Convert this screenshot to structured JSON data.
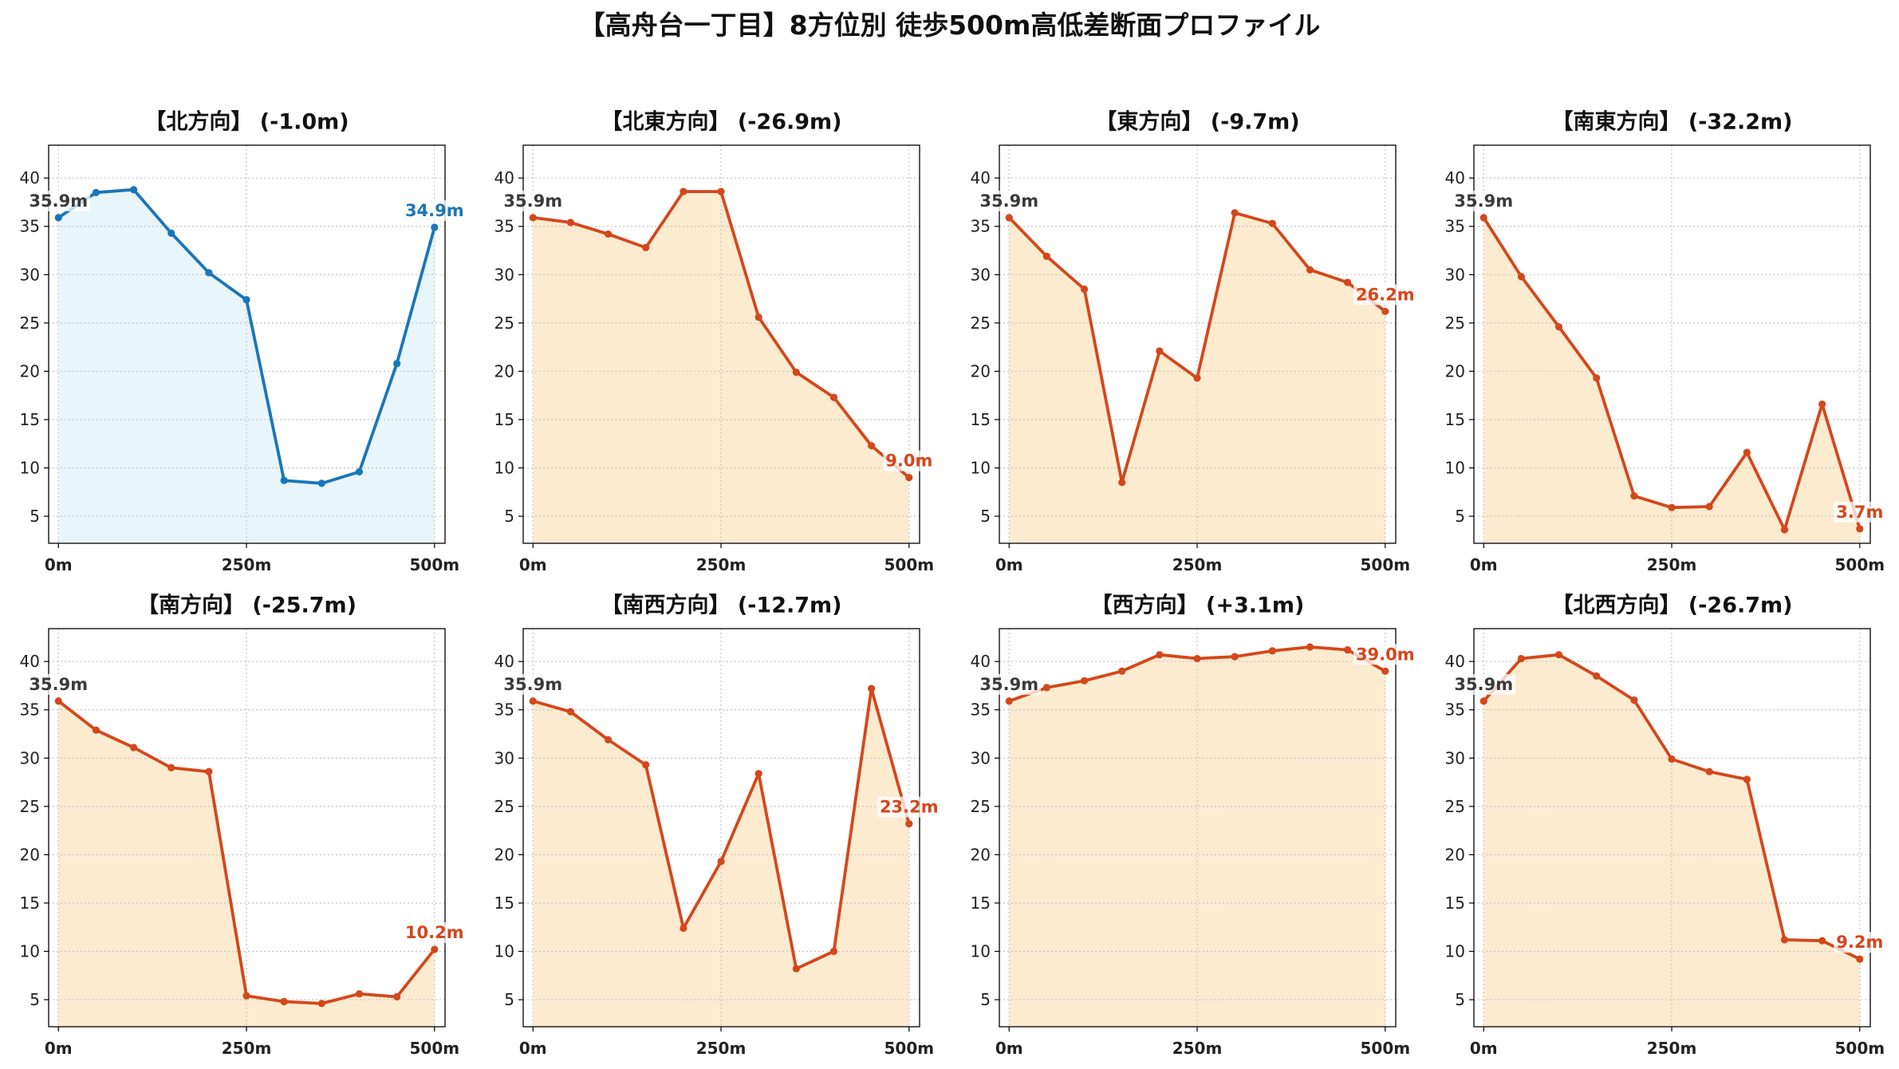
{
  "title": "【高舟台一丁目】8方位別 徒歩500m高低差断面プロファイル",
  "chart_data": [
    {
      "type": "area",
      "title": "【北方向】 (-1.0m)",
      "x": [
        0,
        50,
        100,
        150,
        200,
        250,
        300,
        350,
        400,
        450,
        500
      ],
      "y": [
        35.9,
        38.5,
        38.8,
        34.3,
        30.2,
        27.4,
        8.7,
        8.4,
        9.6,
        20.8,
        34.9
      ],
      "xticks": [
        0,
        250,
        500
      ],
      "xtick_labels": [
        "0m",
        "250m",
        "500m"
      ],
      "yticks": [
        5,
        10,
        15,
        20,
        25,
        30,
        35,
        40
      ],
      "xlim": [
        -13,
        514
      ],
      "ylim": [
        2.2,
        43.4
      ],
      "grid": true,
      "line_color": "#1976b8",
      "fill_color": "#e8f5fb",
      "start_label": "35.9m",
      "start_label_color": "#3a3a3a",
      "end_label": "34.9m"
    },
    {
      "type": "area",
      "title": "【北東方向】 (-26.9m)",
      "x": [
        0,
        50,
        100,
        150,
        200,
        250,
        300,
        350,
        400,
        450,
        500
      ],
      "y": [
        35.9,
        35.4,
        34.2,
        32.8,
        38.6,
        38.6,
        25.6,
        19.9,
        17.3,
        12.3,
        9.0
      ],
      "xticks": [
        0,
        250,
        500
      ],
      "xtick_labels": [
        "0m",
        "250m",
        "500m"
      ],
      "yticks": [
        5,
        10,
        15,
        20,
        25,
        30,
        35,
        40
      ],
      "xlim": [
        -13,
        514
      ],
      "ylim": [
        2.2,
        43.4
      ],
      "grid": true,
      "line_color": "#d4471c",
      "fill_color": "#fdebd0",
      "start_label": "35.9m",
      "start_label_color": "#3a3a3a",
      "end_label": "9.0m"
    },
    {
      "type": "area",
      "title": "【東方向】 (-9.7m)",
      "x": [
        0,
        50,
        100,
        150,
        200,
        250,
        300,
        350,
        400,
        450,
        500
      ],
      "y": [
        35.9,
        31.9,
        28.5,
        8.5,
        22.1,
        19.3,
        36.4,
        35.3,
        30.5,
        29.2,
        26.2
      ],
      "xticks": [
        0,
        250,
        500
      ],
      "xtick_labels": [
        "0m",
        "250m",
        "500m"
      ],
      "yticks": [
        5,
        10,
        15,
        20,
        25,
        30,
        35,
        40
      ],
      "xlim": [
        -13,
        514
      ],
      "ylim": [
        2.2,
        43.4
      ],
      "grid": true,
      "line_color": "#d4471c",
      "fill_color": "#fdebd0",
      "start_label": "35.9m",
      "start_label_color": "#3a3a3a",
      "end_label": "26.2m"
    },
    {
      "type": "area",
      "title": "【南東方向】 (-32.2m)",
      "x": [
        0,
        50,
        100,
        150,
        200,
        250,
        300,
        350,
        400,
        450,
        500
      ],
      "y": [
        35.9,
        29.8,
        24.6,
        19.3,
        7.1,
        5.9,
        6.0,
        11.6,
        3.6,
        16.6,
        3.7
      ],
      "xticks": [
        0,
        250,
        500
      ],
      "xtick_labels": [
        "0m",
        "250m",
        "500m"
      ],
      "yticks": [
        5,
        10,
        15,
        20,
        25,
        30,
        35,
        40
      ],
      "xlim": [
        -13,
        514
      ],
      "ylim": [
        2.2,
        43.4
      ],
      "grid": true,
      "line_color": "#d4471c",
      "fill_color": "#fdebd0",
      "start_label": "35.9m",
      "start_label_color": "#3a3a3a",
      "end_label": "3.7m"
    },
    {
      "type": "area",
      "title": "【南方向】 (-25.7m)",
      "x": [
        0,
        50,
        100,
        150,
        200,
        250,
        300,
        350,
        400,
        450,
        500
      ],
      "y": [
        35.9,
        32.9,
        31.1,
        29.0,
        28.6,
        5.4,
        4.8,
        4.6,
        5.6,
        5.3,
        10.2
      ],
      "xticks": [
        0,
        250,
        500
      ],
      "xtick_labels": [
        "0m",
        "250m",
        "500m"
      ],
      "yticks": [
        5,
        10,
        15,
        20,
        25,
        30,
        35,
        40
      ],
      "xlim": [
        -13,
        514
      ],
      "ylim": [
        2.2,
        43.4
      ],
      "grid": true,
      "line_color": "#d4471c",
      "fill_color": "#fdebd0",
      "start_label": "35.9m",
      "start_label_color": "#3a3a3a",
      "end_label": "10.2m"
    },
    {
      "type": "area",
      "title": "【南西方向】 (-12.7m)",
      "x": [
        0,
        50,
        100,
        150,
        200,
        250,
        300,
        350,
        400,
        450,
        500
      ],
      "y": [
        35.9,
        34.8,
        31.9,
        29.3,
        12.4,
        19.3,
        28.4,
        8.2,
        10.0,
        37.2,
        23.2
      ],
      "xticks": [
        0,
        250,
        500
      ],
      "xtick_labels": [
        "0m",
        "250m",
        "500m"
      ],
      "yticks": [
        5,
        10,
        15,
        20,
        25,
        30,
        35,
        40
      ],
      "xlim": [
        -13,
        514
      ],
      "ylim": [
        2.2,
        43.4
      ],
      "grid": true,
      "line_color": "#d4471c",
      "fill_color": "#fdebd0",
      "start_label": "35.9m",
      "start_label_color": "#3a3a3a",
      "end_label": "23.2m"
    },
    {
      "type": "area",
      "title": "【西方向】 (+3.1m)",
      "x": [
        0,
        50,
        100,
        150,
        200,
        250,
        300,
        350,
        400,
        450,
        500
      ],
      "y": [
        35.9,
        37.3,
        38.0,
        39.0,
        40.7,
        40.3,
        40.5,
        41.1,
        41.5,
        41.2,
        39.0
      ],
      "xticks": [
        0,
        250,
        500
      ],
      "xtick_labels": [
        "0m",
        "250m",
        "500m"
      ],
      "yticks": [
        5,
        10,
        15,
        20,
        25,
        30,
        35,
        40
      ],
      "xlim": [
        -13,
        514
      ],
      "ylim": [
        2.2,
        43.4
      ],
      "grid": true,
      "line_color": "#d4471c",
      "fill_color": "#fdebd0",
      "start_label": "35.9m",
      "start_label_color": "#3a3a3a",
      "end_label": "39.0m"
    },
    {
      "type": "area",
      "title": "【北西方向】 (-26.7m)",
      "x": [
        0,
        50,
        100,
        150,
        200,
        250,
        300,
        350,
        400,
        450,
        500
      ],
      "y": [
        35.9,
        40.3,
        40.7,
        38.5,
        36.0,
        29.9,
        28.6,
        27.8,
        11.2,
        11.1,
        9.2
      ],
      "xticks": [
        0,
        250,
        500
      ],
      "xtick_labels": [
        "0m",
        "250m",
        "500m"
      ],
      "yticks": [
        5,
        10,
        15,
        20,
        25,
        30,
        35,
        40
      ],
      "xlim": [
        -13,
        514
      ],
      "ylim": [
        2.2,
        43.4
      ],
      "grid": true,
      "line_color": "#d4471c",
      "fill_color": "#fdebd0",
      "start_label": "35.9m",
      "start_label_color": "#3a3a3a",
      "end_label": "9.2m"
    }
  ]
}
